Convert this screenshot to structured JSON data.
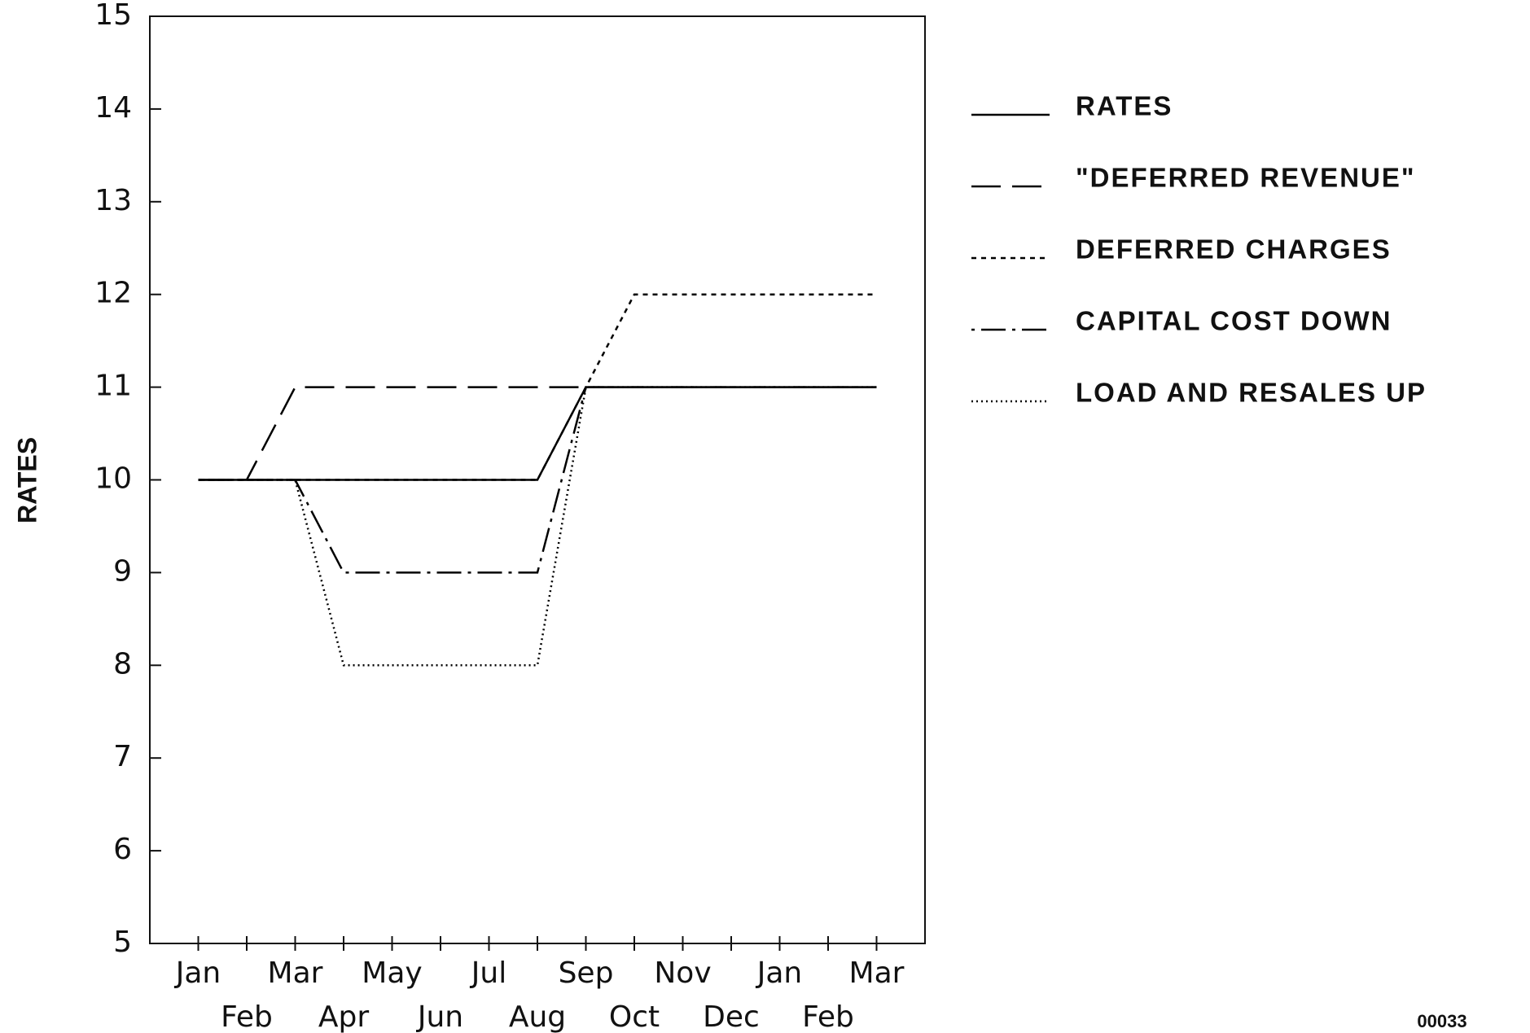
{
  "chart_data": {
    "type": "line",
    "ylabel": "RATES",
    "categories": [
      "Jan",
      "Feb",
      "Mar",
      "Apr",
      "May",
      "Jun",
      "Jul",
      "Aug",
      "Sep",
      "Oct",
      "Nov",
      "Dec",
      "Jan",
      "Feb",
      "Mar"
    ],
    "series": [
      {
        "name": "RATES",
        "color": "#000",
        "style": "solid",
        "values": [
          10,
          10,
          10,
          10,
          10,
          10,
          10,
          10,
          11,
          11,
          11,
          11,
          11,
          11,
          11
        ]
      },
      {
        "name": "\"DEFERRED REVENUE\"",
        "color": "#000",
        "style": "long-dash",
        "values": [
          10,
          10,
          11,
          11,
          11,
          11,
          11,
          11,
          11,
          11,
          11,
          11,
          11,
          11,
          11
        ]
      },
      {
        "name": "DEFERRED CHARGES",
        "color": "#000",
        "style": "short-dash",
        "values": [
          10,
          10,
          10,
          10,
          10,
          10,
          10,
          10,
          11,
          12,
          12,
          12,
          12,
          12,
          12
        ]
      },
      {
        "name": "CAPITAL COST DOWN",
        "color": "#000",
        "style": "dash-dot",
        "values": [
          10,
          10,
          10,
          9,
          9,
          9,
          9,
          9,
          11,
          11,
          11,
          11,
          11,
          11,
          11
        ]
      },
      {
        "name": "LOAD AND RESALES UP",
        "color": "#000",
        "style": "dotted",
        "values": [
          10,
          10,
          10,
          8,
          8,
          8,
          8,
          8,
          11,
          11,
          11,
          11,
          11,
          11,
          11
        ]
      }
    ],
    "ylim": [
      5,
      15
    ],
    "yticks": [
      5,
      6,
      7,
      8,
      9,
      10,
      11,
      12,
      13,
      14,
      15
    ],
    "legend": "right",
    "footnote": "00033"
  }
}
